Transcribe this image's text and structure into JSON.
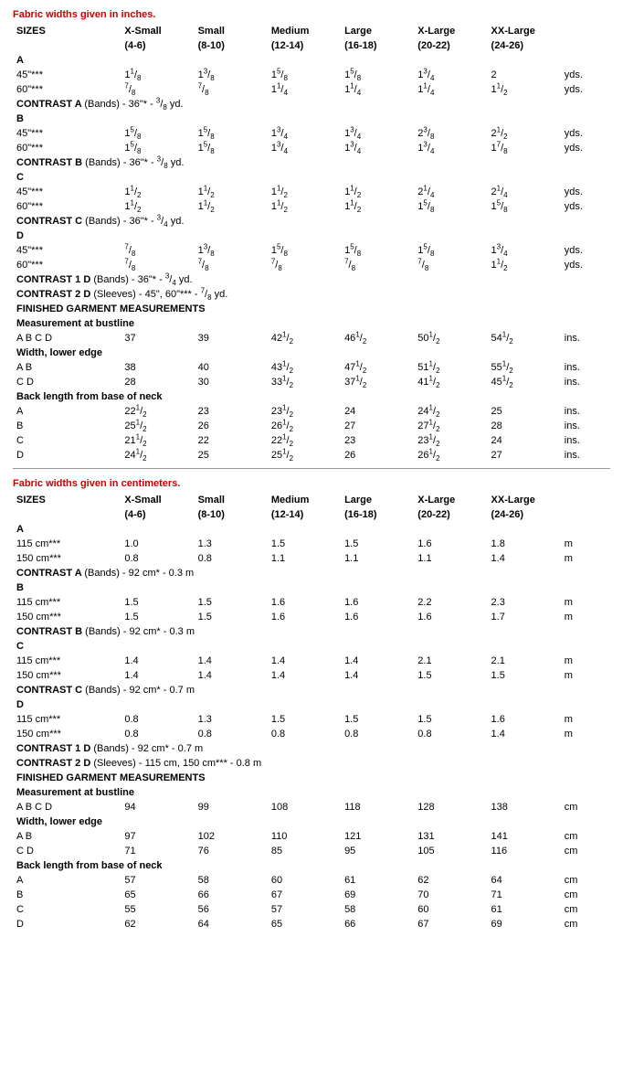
{
  "inches": {
    "heading": "Fabric widths given in inches.",
    "header": {
      "sizesLabel": "SIZES",
      "cols": [
        {
          "name": "X-Small",
          "range": "(4-6)"
        },
        {
          "name": "Small",
          "range": "(8-10)"
        },
        {
          "name": "Medium",
          "range": "(12-14)"
        },
        {
          "name": "Large",
          "range": "(16-18)"
        },
        {
          "name": "X-Large",
          "range": "(20-22)"
        },
        {
          "name": "XX-Large",
          "range": "(24-26)"
        }
      ]
    },
    "sections": [
      {
        "type": "label",
        "text": "A"
      },
      {
        "type": "data",
        "label": "45\"***",
        "vals": [
          "1 1/8",
          "1 3/8",
          "1 5/8",
          "1 5/8",
          "1 3/4",
          "2"
        ],
        "unit": "yds."
      },
      {
        "type": "data",
        "label": "60\"***",
        "vals": [
          "7/8",
          "7/8",
          "1 1/4",
          "1 1/4",
          "1 1/4",
          "1 1/2"
        ],
        "unit": "yds."
      },
      {
        "type": "note",
        "text": "CONTRAST A (Bands) - 36\"* - 3/8 yd."
      },
      {
        "type": "label",
        "text": "B"
      },
      {
        "type": "data",
        "label": "45\"***",
        "vals": [
          "1 5/8",
          "1 5/8",
          "1 3/4",
          "1 3/4",
          "2 3/8",
          "2 1/2"
        ],
        "unit": "yds."
      },
      {
        "type": "data",
        "label": "60\"***",
        "vals": [
          "1 5/8",
          "1 5/8",
          "1 3/4",
          "1 3/4",
          "1 3/4",
          "1 7/8"
        ],
        "unit": "yds."
      },
      {
        "type": "note",
        "text": "CONTRAST B (Bands) - 36\"* - 3/8 yd."
      },
      {
        "type": "label",
        "text": "C"
      },
      {
        "type": "data",
        "label": "45\"***",
        "vals": [
          "1 1/2",
          "1 1/2",
          "1 1/2",
          "1 1/2",
          "2 1/4",
          "2 1/4"
        ],
        "unit": "yds."
      },
      {
        "type": "data",
        "label": "60\"***",
        "vals": [
          "1 1/2",
          "1 1/2",
          "1 1/2",
          "1 1/2",
          "1 5/8",
          "1 5/8"
        ],
        "unit": "yds."
      },
      {
        "type": "note",
        "text": "CONTRAST C (Bands) - 36\"* - 3/4 yd."
      },
      {
        "type": "label",
        "text": "D"
      },
      {
        "type": "data",
        "label": "45\"***",
        "vals": [
          "7/8",
          "1 3/8",
          "1 5/8",
          "1 5/8",
          "1 5/8",
          "1 3/4"
        ],
        "unit": "yds."
      },
      {
        "type": "data",
        "label": "60\"***",
        "vals": [
          "7/8",
          "7/8",
          "7/8",
          "7/8",
          "7/8",
          "1 1/2"
        ],
        "unit": "yds."
      },
      {
        "type": "note",
        "text": "CONTRAST 1 D (Bands) - 36\"* - 3/4 yd."
      },
      {
        "type": "note",
        "text": "CONTRAST 2 D (Sleeves) - 45\", 60\"*** - 7/8 yd."
      },
      {
        "type": "section",
        "text": "FINISHED GARMENT MEASUREMENTS"
      },
      {
        "type": "section",
        "text": "Measurement at bustline"
      },
      {
        "type": "data",
        "label": "A B C D",
        "vals": [
          "37",
          "39",
          "42 1/2",
          "46 1/2",
          "50 1/2",
          "54 1/2"
        ],
        "unit": "ins."
      },
      {
        "type": "section",
        "text": "Width, lower edge"
      },
      {
        "type": "data",
        "label": "A B",
        "vals": [
          "38",
          "40",
          "43 1/2",
          "47 1/2",
          "51 1/2",
          "55 1/2"
        ],
        "unit": "ins."
      },
      {
        "type": "data",
        "label": "C D",
        "vals": [
          "28",
          "30",
          "33 1/2",
          "37 1/2",
          "41 1/2",
          "45 1/2"
        ],
        "unit": "ins."
      },
      {
        "type": "section",
        "text": "Back length from base of neck"
      },
      {
        "type": "data",
        "label": "A",
        "vals": [
          "22 1/2",
          "23",
          "23 1/2",
          "24",
          "24 1/2",
          "25"
        ],
        "unit": "ins."
      },
      {
        "type": "data",
        "label": "B",
        "vals": [
          "25 1/2",
          "26",
          "26 1/2",
          "27",
          "27 1/2",
          "28"
        ],
        "unit": "ins."
      },
      {
        "type": "data",
        "label": "C",
        "vals": [
          "21 1/2",
          "22",
          "22 1/2",
          "23",
          "23 1/2",
          "24"
        ],
        "unit": "ins."
      },
      {
        "type": "data",
        "label": "D",
        "vals": [
          "24 1/2",
          "25",
          "25 1/2",
          "26",
          "26 1/2",
          "27"
        ],
        "unit": "ins."
      }
    ]
  },
  "cm": {
    "heading": "Fabric widths given in centimeters.",
    "header": {
      "sizesLabel": "SIZES",
      "cols": [
        {
          "name": "X-Small",
          "range": "(4-6)"
        },
        {
          "name": "Small",
          "range": "(8-10)"
        },
        {
          "name": "Medium",
          "range": "(12-14)"
        },
        {
          "name": "Large",
          "range": "(16-18)"
        },
        {
          "name": "X-Large",
          "range": "(20-22)"
        },
        {
          "name": "XX-Large",
          "range": "(24-26)"
        }
      ]
    },
    "sections": [
      {
        "type": "label",
        "text": "A"
      },
      {
        "type": "data",
        "label": "115 cm***",
        "vals": [
          "1.0",
          "1.3",
          "1.5",
          "1.5",
          "1.6",
          "1.8"
        ],
        "unit": "m"
      },
      {
        "type": "data",
        "label": "150 cm***",
        "vals": [
          "0.8",
          "0.8",
          "1.1",
          "1.1",
          "1.1",
          "1.4"
        ],
        "unit": "m"
      },
      {
        "type": "note",
        "text": "CONTRAST A (Bands) - 92 cm* - 0.3 m"
      },
      {
        "type": "label",
        "text": "B"
      },
      {
        "type": "data",
        "label": "115 cm***",
        "vals": [
          "1.5",
          "1.5",
          "1.6",
          "1.6",
          "2.2",
          "2.3"
        ],
        "unit": "m"
      },
      {
        "type": "data",
        "label": "150 cm***",
        "vals": [
          "1.5",
          "1.5",
          "1.6",
          "1.6",
          "1.6",
          "1.7"
        ],
        "unit": "m"
      },
      {
        "type": "note",
        "text": "CONTRAST B (Bands) - 92 cm* - 0.3 m"
      },
      {
        "type": "label",
        "text": "C"
      },
      {
        "type": "data",
        "label": "115 cm***",
        "vals": [
          "1.4",
          "1.4",
          "1.4",
          "1.4",
          "2.1",
          "2.1"
        ],
        "unit": "m"
      },
      {
        "type": "data",
        "label": "150 cm***",
        "vals": [
          "1.4",
          "1.4",
          "1.4",
          "1.4",
          "1.5",
          "1.5"
        ],
        "unit": "m"
      },
      {
        "type": "note",
        "text": "CONTRAST C (Bands) - 92 cm* - 0.7 m"
      },
      {
        "type": "label",
        "text": "D"
      },
      {
        "type": "data",
        "label": "115 cm***",
        "vals": [
          "0.8",
          "1.3",
          "1.5",
          "1.5",
          "1.5",
          "1.6"
        ],
        "unit": "m"
      },
      {
        "type": "data",
        "label": "150 cm***",
        "vals": [
          "0.8",
          "0.8",
          "0.8",
          "0.8",
          "0.8",
          "1.4"
        ],
        "unit": "m"
      },
      {
        "type": "note",
        "text": "CONTRAST 1 D (Bands) - 92 cm* - 0.7 m"
      },
      {
        "type": "note",
        "text": "CONTRAST 2 D (Sleeves) - 115 cm, 150 cm*** - 0.8 m"
      },
      {
        "type": "section",
        "text": "FINISHED GARMENT MEASUREMENTS"
      },
      {
        "type": "section",
        "text": "Measurement at bustline"
      },
      {
        "type": "data",
        "label": "A B C D",
        "vals": [
          "94",
          "99",
          "108",
          "118",
          "128",
          "138"
        ],
        "unit": "cm"
      },
      {
        "type": "section",
        "text": "Width, lower edge"
      },
      {
        "type": "data",
        "label": "A B",
        "vals": [
          "97",
          "102",
          "110",
          "121",
          "131",
          "141"
        ],
        "unit": "cm"
      },
      {
        "type": "data",
        "label": "C D",
        "vals": [
          "71",
          "76",
          "85",
          "95",
          "105",
          "116"
        ],
        "unit": "cm"
      },
      {
        "type": "section",
        "text": "Back length from base of neck"
      },
      {
        "type": "data",
        "label": "A",
        "vals": [
          "57",
          "58",
          "60",
          "61",
          "62",
          "64"
        ],
        "unit": "cm"
      },
      {
        "type": "data",
        "label": "B",
        "vals": [
          "65",
          "66",
          "67",
          "69",
          "70",
          "71"
        ],
        "unit": "cm"
      },
      {
        "type": "data",
        "label": "C",
        "vals": [
          "55",
          "56",
          "57",
          "58",
          "60",
          "61"
        ],
        "unit": "cm"
      },
      {
        "type": "data",
        "label": "D",
        "vals": [
          "62",
          "64",
          "65",
          "66",
          "67",
          "69"
        ],
        "unit": "cm"
      }
    ]
  }
}
